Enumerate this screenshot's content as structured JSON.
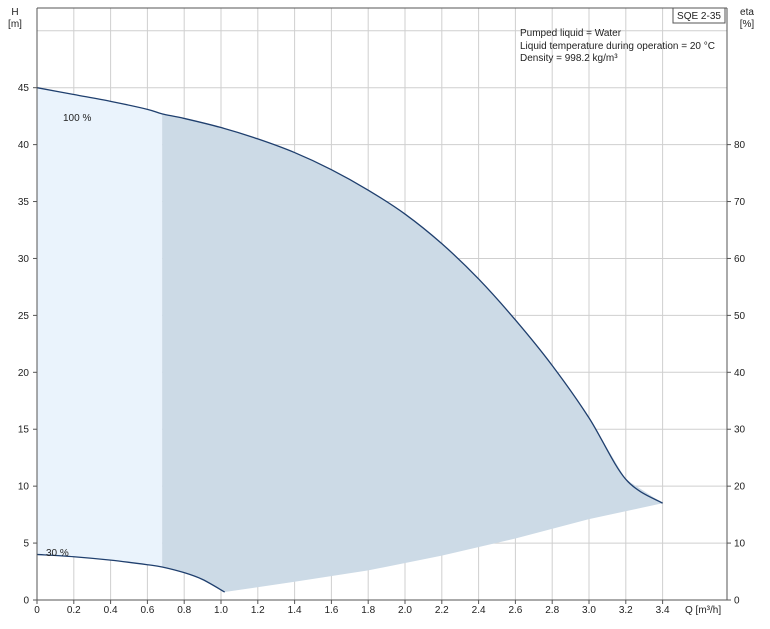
{
  "chart_data": {
    "type": "line",
    "title_box": "SQE 2-35",
    "y_left_label": [
      "H",
      "[m]"
    ],
    "y_right_label": [
      "eta",
      "[%]"
    ],
    "x_label": "Q [m³/h]",
    "info_lines": [
      "Pumped liquid = Water",
      "Liquid temperature during operation = 20 °C",
      "Density = 998.2 kg/m³"
    ],
    "xlim": [
      0,
      3.75
    ],
    "ylim": [
      0,
      52
    ],
    "y2lim": [
      0,
      104
    ],
    "x_ticks": [
      0,
      0.2,
      0.4,
      0.6,
      0.8,
      1.0,
      1.2,
      1.4,
      1.6,
      1.8,
      2.0,
      2.2,
      2.4,
      2.6,
      2.8,
      3.0,
      3.2,
      3.4
    ],
    "x_tick_labels": [
      "0",
      "0.2",
      "0.4",
      "0.6",
      "0.8",
      "1.0",
      "1.2",
      "1.4",
      "1.6",
      "1.8",
      "2.0",
      "2.2",
      "2.4",
      "2.6",
      "2.8",
      "3.0",
      "3.2",
      "3.4"
    ],
    "y_ticks": [
      0,
      5,
      10,
      15,
      20,
      25,
      30,
      35,
      40,
      45
    ],
    "y_tick_labels": [
      "0",
      "5",
      "10",
      "15",
      "20",
      "25",
      "30",
      "35",
      "40",
      "45"
    ],
    "y2_ticks": [
      0,
      10,
      20,
      30,
      40,
      50,
      60,
      70,
      80
    ],
    "y2_tick_labels": [
      "0",
      "10",
      "20",
      "30",
      "40",
      "50",
      "60",
      "70",
      "80"
    ],
    "series": [
      {
        "name": "100 %",
        "x": [
          0,
          0.2,
          0.4,
          0.6,
          0.68,
          0.8,
          1.0,
          1.2,
          1.4,
          1.6,
          1.8,
          2.0,
          2.2,
          2.4,
          2.6,
          2.8,
          3.0,
          3.2,
          3.4
        ],
        "y": [
          45.0,
          44.4,
          43.8,
          43.1,
          42.7,
          42.3,
          41.5,
          40.5,
          39.3,
          37.8,
          36.0,
          33.9,
          31.3,
          28.2,
          24.6,
          20.6,
          16.0,
          10.6,
          8.5
        ]
      },
      {
        "name": "30 %",
        "x": [
          0,
          0.2,
          0.4,
          0.6,
          0.68,
          0.8,
          0.9,
          1.02
        ],
        "y": [
          4.0,
          3.8,
          3.5,
          3.1,
          2.9,
          2.4,
          1.8,
          0.7
        ]
      }
    ],
    "lower_boundary": {
      "x": [
        1.02,
        1.4,
        1.8,
        2.2,
        2.6,
        3.0,
        3.4
      ],
      "y": [
        0.7,
        1.6,
        2.6,
        3.9,
        5.4,
        7.1,
        8.5
      ]
    },
    "region_split_x": 0.68,
    "colors": {
      "curve": "#1f3f6e",
      "region_light": "#eaf3fc",
      "region_dark": "#ccdae6",
      "grid": "#cfcfcf",
      "axis": "#555555"
    }
  }
}
